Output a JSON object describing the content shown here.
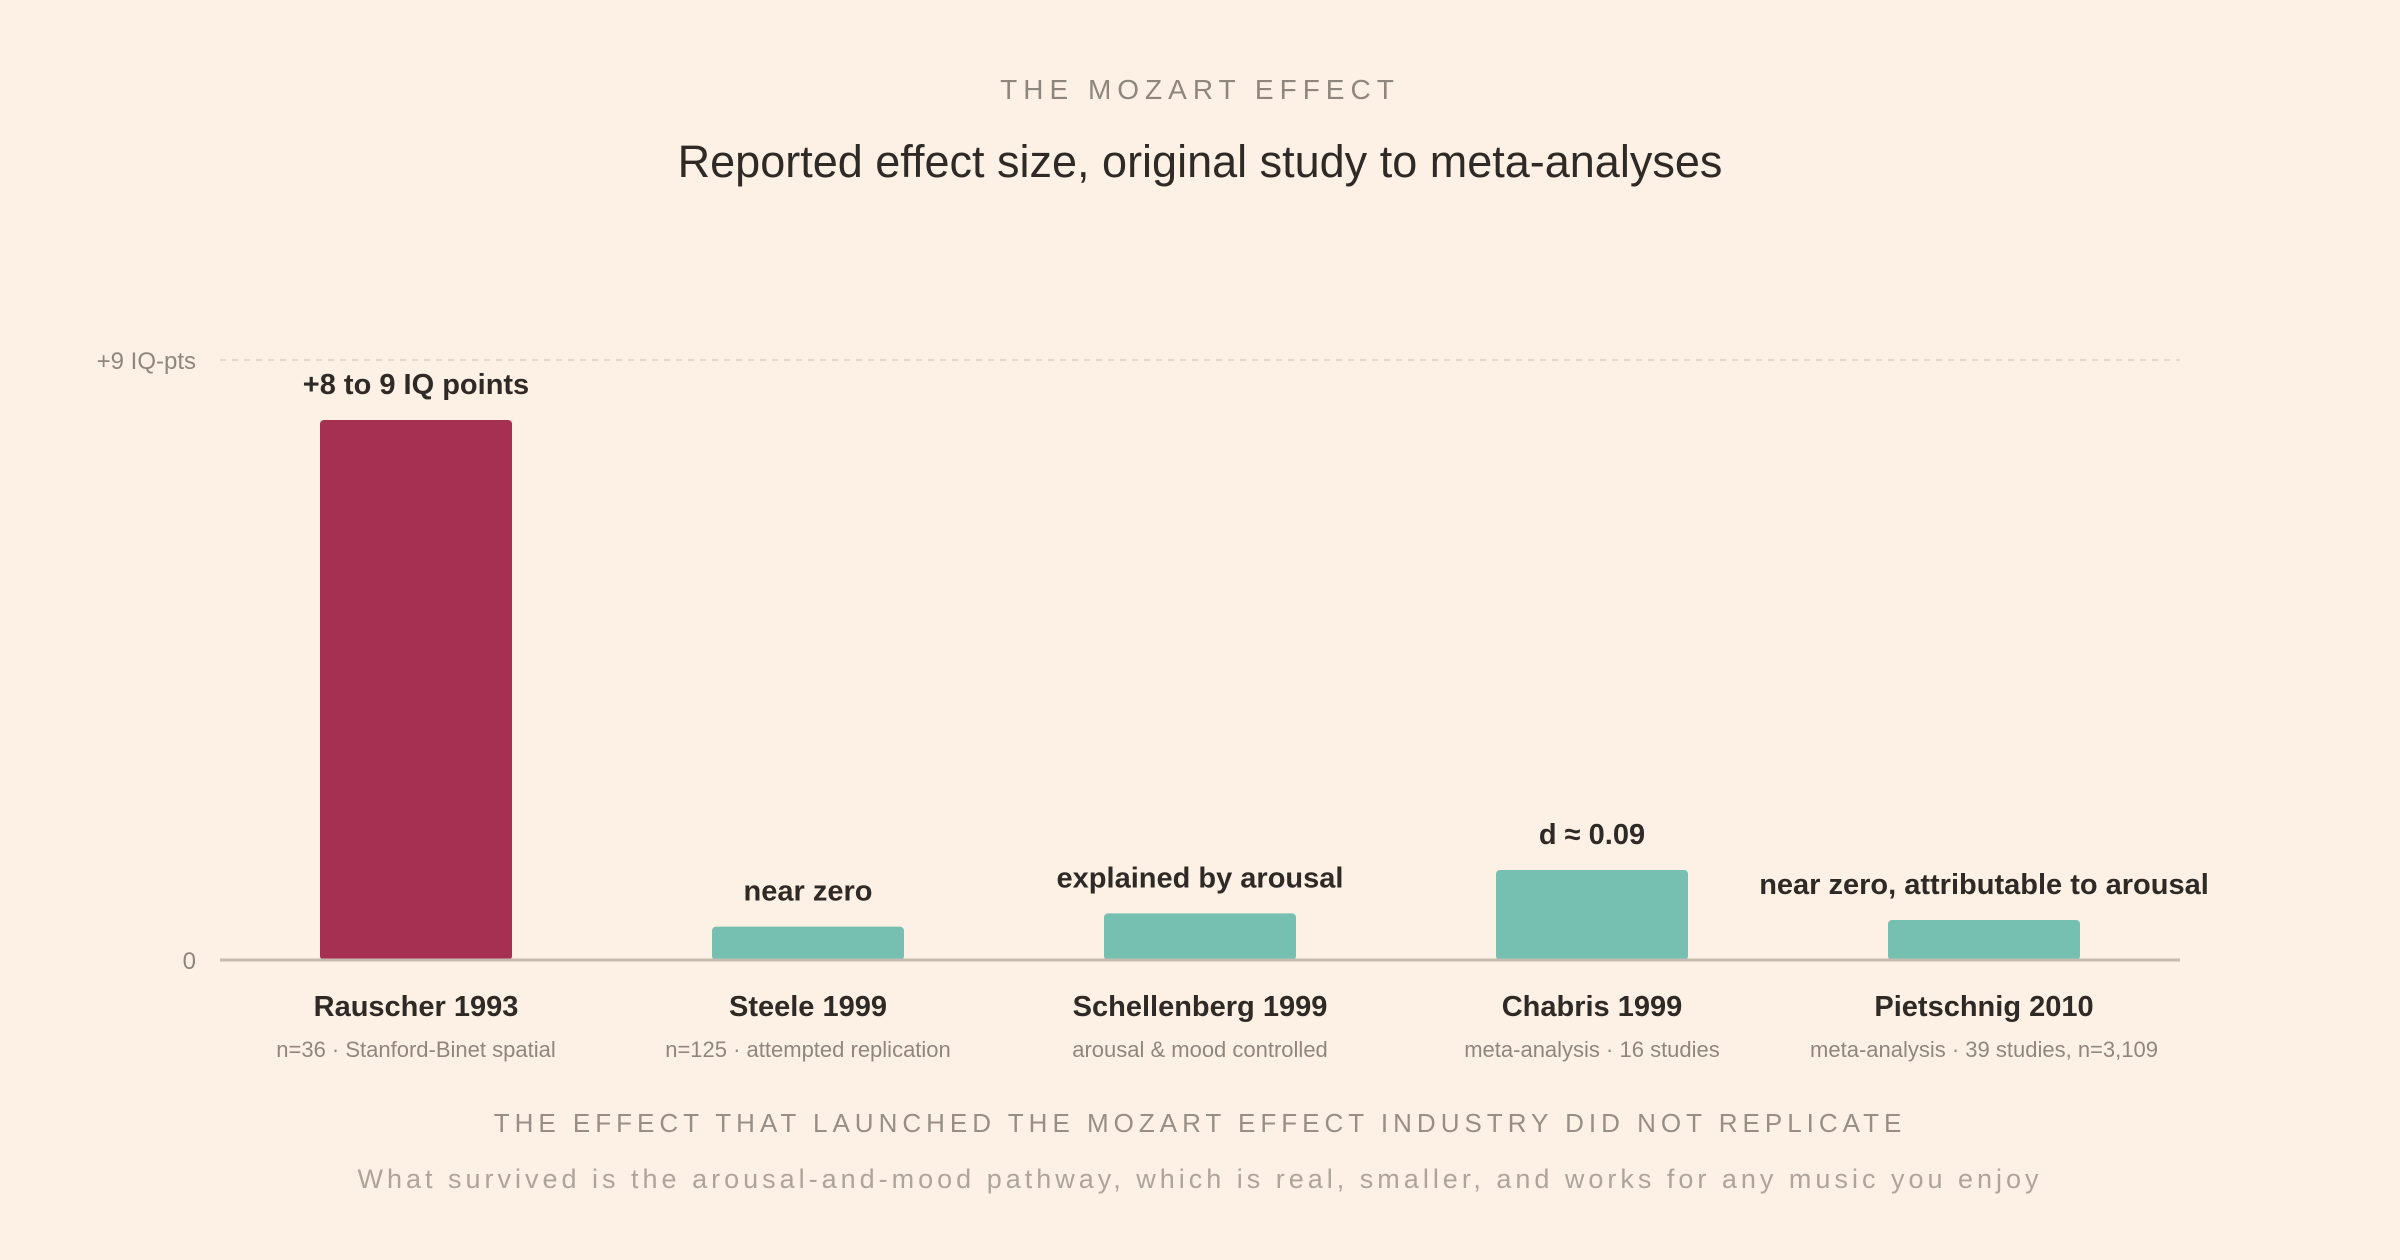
{
  "header": {
    "kicker": "THE MOZART EFFECT",
    "title": "Reported effect size, original study to meta-analyses"
  },
  "footer": {
    "headline": "THE EFFECT THAT LAUNCHED THE MOZART EFFECT INDUSTRY DID NOT REPLICATE",
    "note": "What survived is the arousal-and-mood pathway, which is real, smaller, and works for any music you enjoy"
  },
  "chart_data": {
    "type": "bar",
    "ylim": [
      0,
      9
    ],
    "y_ticks": [
      {
        "value": 0,
        "label": "0"
      },
      {
        "value": 9,
        "label": "+9 IQ-pts"
      }
    ],
    "grid": "dashed line at top tick only",
    "legend": "none",
    "categories": [
      "Rauscher 1993",
      "Steele 1999",
      "Schellenberg 1999",
      "Chabris 1999",
      "Pietschnig 2010"
    ],
    "subtitles": [
      "n=36 · Stanford-Binet spatial",
      "n=125 · attempted replication",
      "arousal & mood controlled",
      "meta-analysis · 16 studies",
      "meta-analysis · 39 studies, n=3,109"
    ],
    "values": [
      8.1,
      0.5,
      0.7,
      1.35,
      0.6
    ],
    "data_labels": [
      "+8 to 9 IQ points",
      "near zero",
      "explained by arousal",
      "d ≈ 0.09",
      "near zero, attributable to arousal"
    ],
    "colors": [
      "#a63052",
      "#76c0b2",
      "#76c0b2",
      "#76c0b2",
      "#76c0b2"
    ]
  }
}
